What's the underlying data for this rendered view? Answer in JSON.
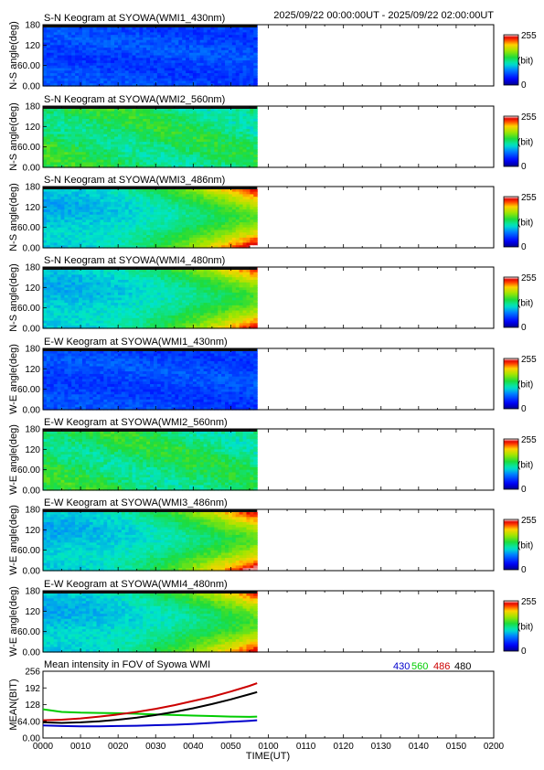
{
  "header": {
    "time_range": "2025/09/22 00:00:00UT - 2025/09/22 02:00:00UT"
  },
  "colorbar": {
    "max_label": "255",
    "min_label": "0",
    "unit_label": "(bit)"
  },
  "chart_data": [
    {
      "type": "heatmap",
      "title": "S-N Keogram at SYOWA(WMI1_430nm)",
      "ylabel": "N-S angle(deg)",
      "yticks": [
        "180",
        "120",
        "60.00",
        "0.00"
      ],
      "ylim": [
        0,
        180
      ],
      "data_end_minute": 57,
      "profile": "blue"
    },
    {
      "type": "heatmap",
      "title": "S-N Keogram at SYOWA(WMI2_560nm)",
      "ylabel": "N-S angle(deg)",
      "yticks": [
        "180",
        "120",
        "60.00",
        "0.00"
      ],
      "ylim": [
        0,
        180
      ],
      "data_end_minute": 57,
      "profile": "green"
    },
    {
      "type": "heatmap",
      "title": "S-N Keogram at SYOWA(WMI3_486nm)",
      "ylabel": "N-S angle(deg)",
      "yticks": [
        "180",
        "120",
        "60.00",
        "0.00"
      ],
      "ylim": [
        0,
        180
      ],
      "data_end_minute": 57,
      "profile": "arc"
    },
    {
      "type": "heatmap",
      "title": "S-N Keogram at SYOWA(WMI4_480nm)",
      "ylabel": "N-S angle(deg)",
      "yticks": [
        "180",
        "120",
        "60.00",
        "0.00"
      ],
      "ylim": [
        0,
        180
      ],
      "data_end_minute": 57,
      "profile": "arc_s"
    },
    {
      "type": "heatmap",
      "title": "E-W Keogram at SYOWA(WMI1_430nm)",
      "ylabel": "W-E angle(deg)",
      "yticks": [
        "180",
        "120",
        "60.00",
        "0.00"
      ],
      "ylim": [
        0,
        180
      ],
      "data_end_minute": 57,
      "profile": "blue"
    },
    {
      "type": "heatmap",
      "title": "E-W Keogram at SYOWA(WMI2_560nm)",
      "ylabel": "W-E angle(deg)",
      "yticks": [
        "180",
        "120",
        "60.00",
        "0.00"
      ],
      "ylim": [
        0,
        180
      ],
      "data_end_minute": 57,
      "profile": "green"
    },
    {
      "type": "heatmap",
      "title": "E-W Keogram at SYOWA(WMI3_486nm)",
      "ylabel": "W-E angle(deg)",
      "yticks": [
        "180",
        "120",
        "60.00",
        "0.00"
      ],
      "ylim": [
        0,
        180
      ],
      "data_end_minute": 57,
      "profile": "arc"
    },
    {
      "type": "heatmap",
      "title": "E-W Keogram at SYOWA(WMI4_480nm)",
      "ylabel": "W-E angle(deg)",
      "yticks": [
        "180",
        "120",
        "60.00",
        "0.00"
      ],
      "ylim": [
        0,
        180
      ],
      "data_end_minute": 57,
      "profile": "arc_s"
    },
    {
      "type": "line",
      "title": "Mean intensity in FOV of Syowa WMI",
      "ylabel": "MEAN(BIT)",
      "xlabel": "TIME(UT)",
      "xlim": [
        0,
        120
      ],
      "ylim": [
        0,
        256
      ],
      "yticks": [
        "256",
        "192",
        "128",
        "64.00",
        "0.00"
      ],
      "xticks": [
        "0000",
        "0010",
        "0020",
        "0030",
        "0040",
        "0050",
        "0100",
        "0110",
        "0120",
        "0130",
        "0140",
        "0150",
        "0200"
      ],
      "x": [
        0,
        5,
        10,
        15,
        20,
        25,
        30,
        35,
        40,
        45,
        50,
        55,
        57
      ],
      "series": [
        {
          "name": "430",
          "color": "#0000cc",
          "values": [
            48,
            46,
            45,
            45,
            46,
            47,
            49,
            51,
            54,
            58,
            62,
            66,
            68
          ]
        },
        {
          "name": "560",
          "color": "#00cc00",
          "values": [
            110,
            100,
            97,
            96,
            95,
            93,
            90,
            88,
            86,
            84,
            82,
            81,
            82
          ]
        },
        {
          "name": "486",
          "color": "#cc0000",
          "values": [
            68,
            70,
            75,
            82,
            90,
            100,
            112,
            126,
            142,
            158,
            178,
            200,
            210
          ]
        },
        {
          "name": "480",
          "color": "#000000",
          "values": [
            60,
            58,
            60,
            64,
            70,
            78,
            88,
            100,
            114,
            130,
            148,
            168,
            176
          ]
        }
      ]
    }
  ]
}
